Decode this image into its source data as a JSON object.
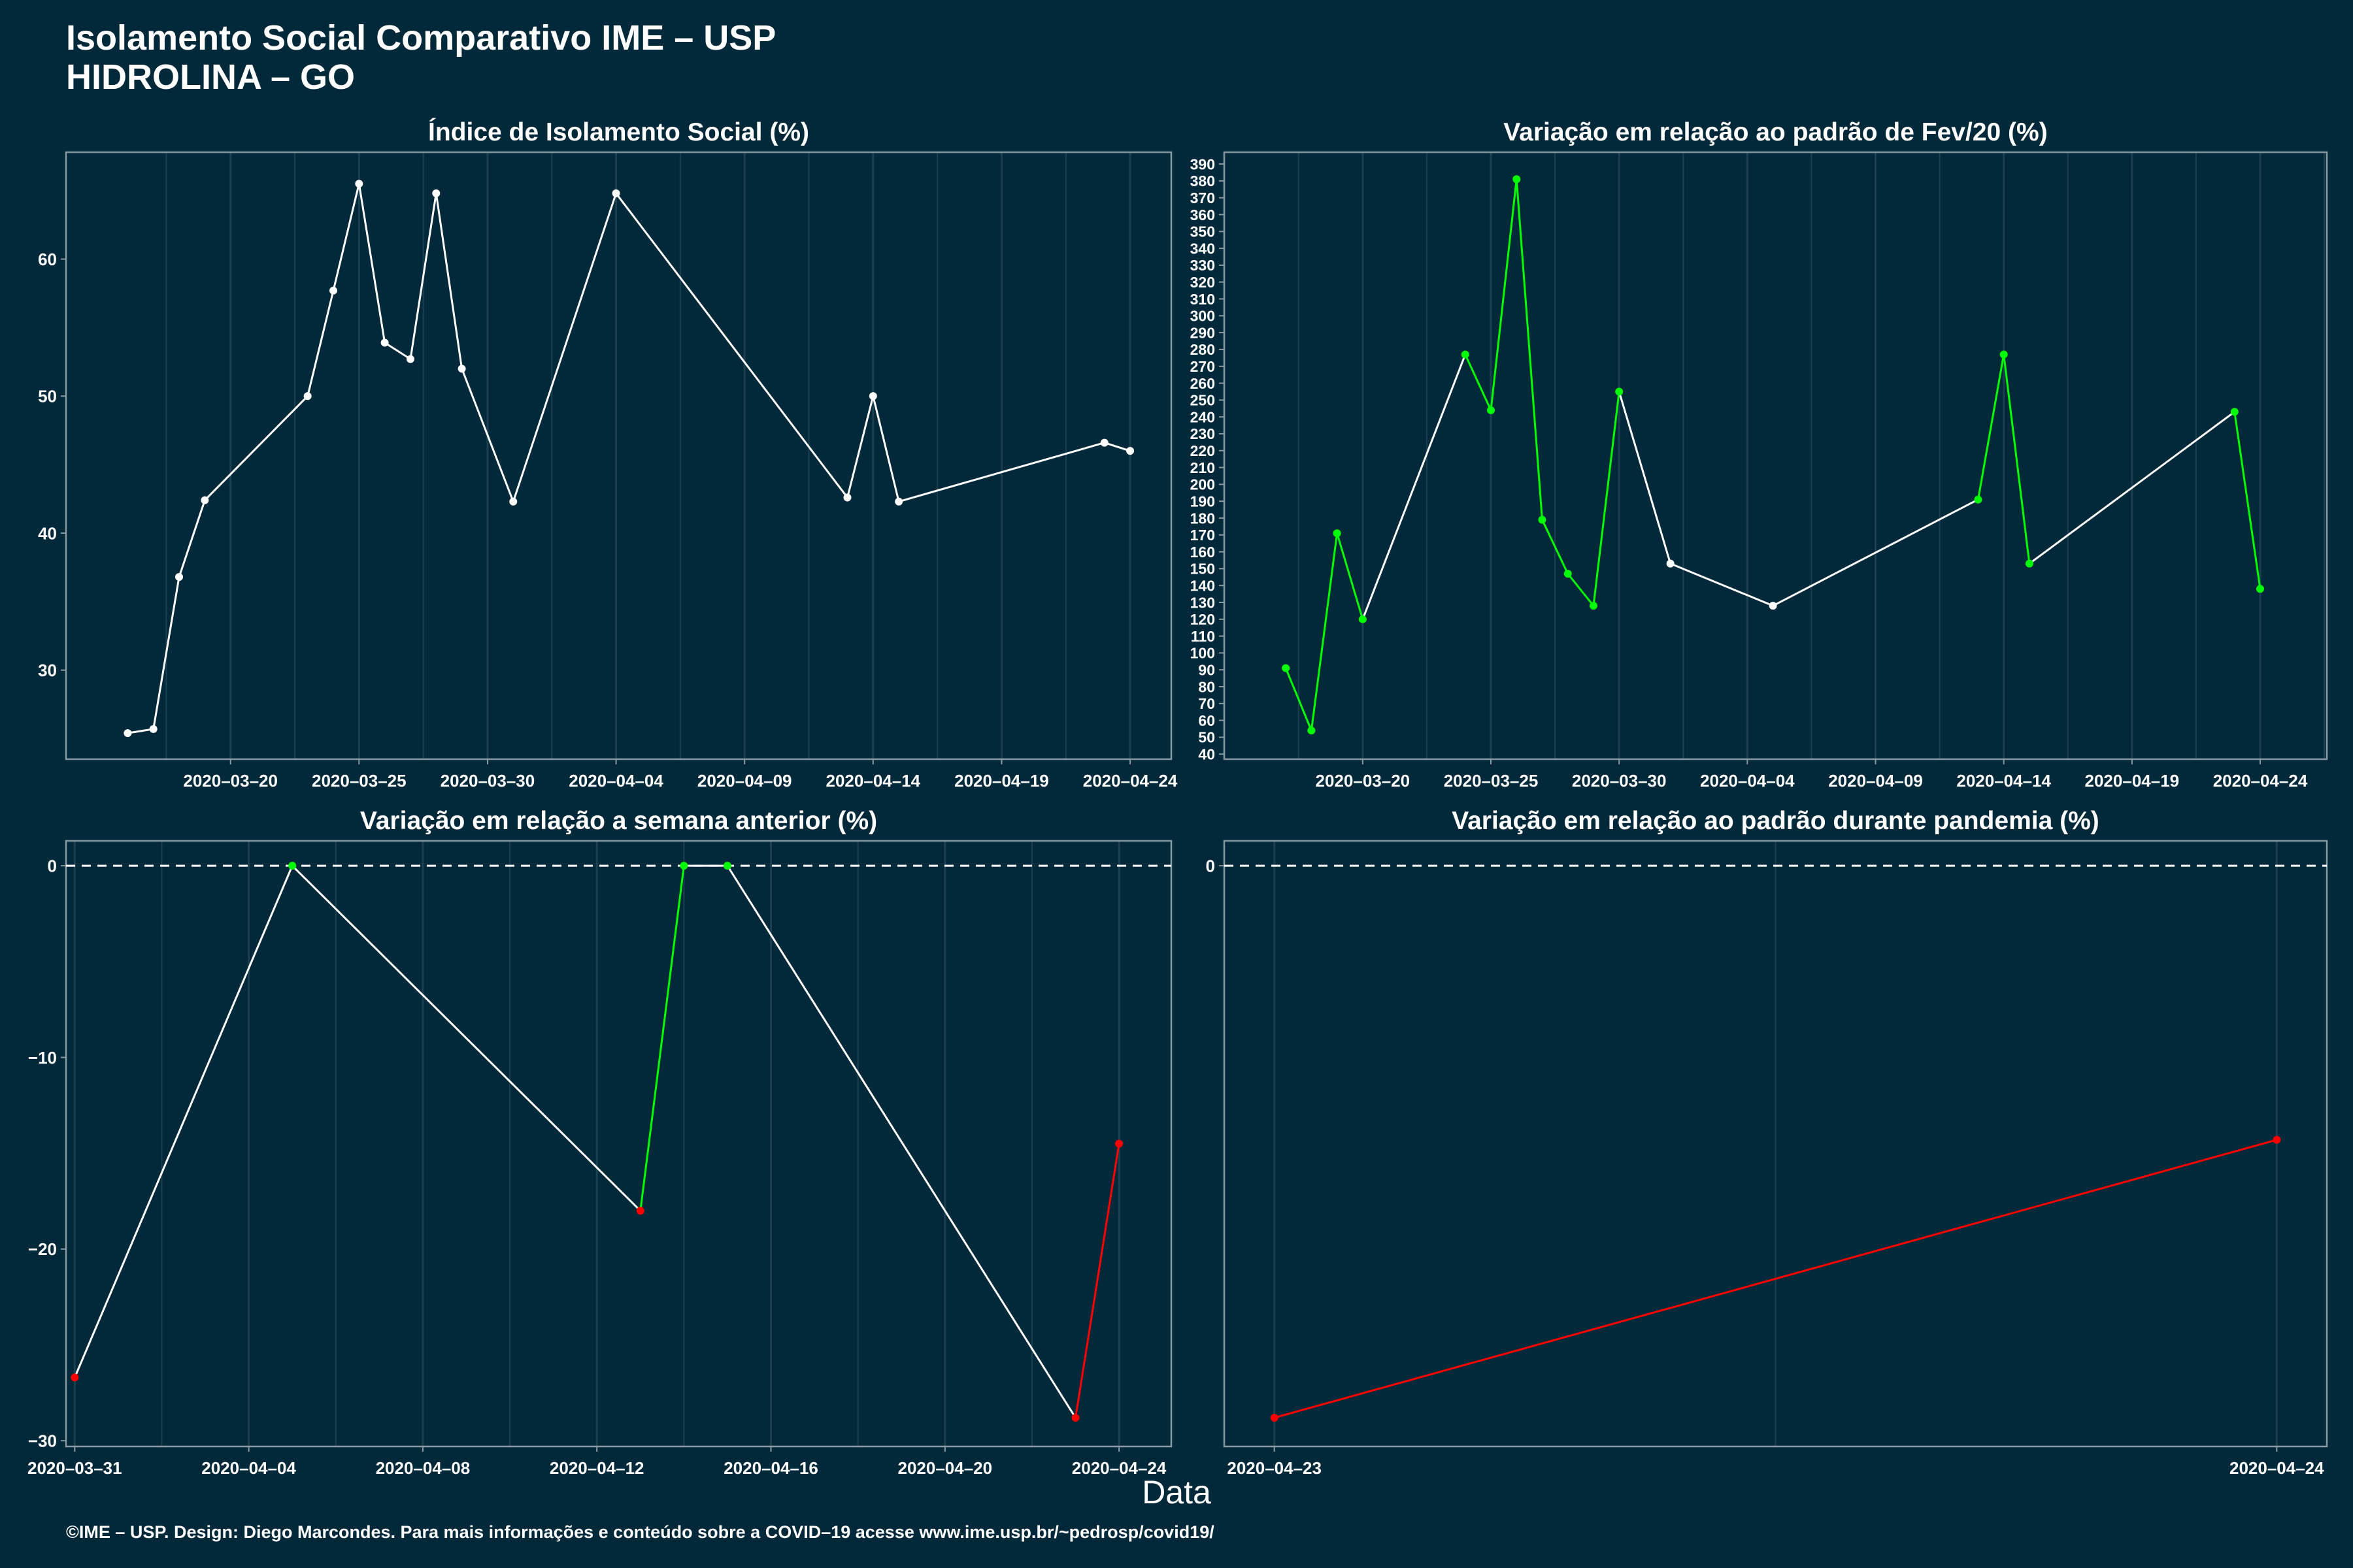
{
  "header": {
    "title_line1": "Isolamento Social Comparativo IME – USP",
    "title_line2": "HIDROLINA – GO"
  },
  "x_axis_title": "Data",
  "footer": "©IME – USP. Design: Diego Marcondes. Para mais informações e conteúdo sobre a COVID–19 acesse www.ime.usp.br/~pedrosp/covid19/",
  "colors": {
    "background": "#02293a",
    "line_white": "#ffffff",
    "increase_green": "#00ff00",
    "decrease_red": "#ff0000",
    "grid": "#1c4050",
    "frame": "#8a9aa2"
  },
  "chart_data": [
    {
      "type": "line",
      "title": "Índice de Isolamento Social (%)",
      "xlabel": "",
      "ylabel": "",
      "x": [
        "2020-03-16",
        "2020-03-17",
        "2020-03-18",
        "2020-03-19",
        "2020-03-23",
        "2020-03-24",
        "2020-03-25",
        "2020-03-26",
        "2020-03-27",
        "2020-03-28",
        "2020-03-29",
        "2020-03-31",
        "2020-04-04",
        "2020-04-13",
        "2020-04-14",
        "2020-04-15",
        "2020-04-23",
        "2020-04-24"
      ],
      "values": [
        25.4,
        25.7,
        36.8,
        42.4,
        50.0,
        57.7,
        65.5,
        53.9,
        52.7,
        64.8,
        52.0,
        42.3,
        64.8,
        42.6,
        50.0,
        42.3,
        46.6,
        46.0
      ],
      "ylim": [
        23.5,
        67.8
      ],
      "yticks": [
        "30",
        "40",
        "50",
        "60"
      ],
      "xticks": [
        "2020–03–20",
        "2020–03–25",
        "2020–03–30",
        "2020–04–04",
        "2020–04–09",
        "2020–04–14",
        "2020–04–19",
        "2020–04–24"
      ],
      "xrange": [
        "2020-03-13.6",
        "2020-04-25.6"
      ]
    },
    {
      "type": "line",
      "title": "Variação em relação ao padrão de Fev/20 (%)",
      "xlabel": "",
      "ylabel": "",
      "x": [
        "2020-03-17",
        "2020-03-18",
        "2020-03-19",
        "2020-03-20",
        "2020-03-24",
        "2020-03-25",
        "2020-03-26",
        "2020-03-27",
        "2020-03-28",
        "2020-03-29",
        "2020-03-30",
        "2020-04-01",
        "2020-04-05",
        "2020-04-13",
        "2020-04-14",
        "2020-04-15",
        "2020-04-23",
        "2020-04-24"
      ],
      "values": [
        91,
        54,
        171,
        120,
        277,
        244,
        381,
        179,
        147,
        128,
        255,
        153,
        128,
        191,
        277,
        153,
        243,
        138
      ],
      "segment_colors": [
        "green",
        "green",
        "green",
        "white",
        "green",
        "green",
        "green",
        "green",
        "green",
        "green",
        "white",
        "white",
        "white",
        "green",
        "green",
        "white",
        "green"
      ],
      "ylim": [
        37,
        397
      ],
      "yticks": [
        "40",
        "50",
        "60",
        "70",
        "80",
        "90",
        "100",
        "110",
        "120",
        "130",
        "140",
        "150",
        "160",
        "170",
        "180",
        "190",
        "200",
        "210",
        "220",
        "230",
        "240",
        "250",
        "260",
        "270",
        "280",
        "290",
        "300",
        "310",
        "320",
        "330",
        "340",
        "350",
        "360",
        "370",
        "380",
        "390"
      ],
      "xticks": [
        "2020–03–20",
        "2020–03–25",
        "2020–03–30",
        "2020–04–04",
        "2020–04–09",
        "2020–04–14",
        "2020–04–19",
        "2020–04–24"
      ],
      "xrange": [
        "2020-03-14.6",
        "2020-04-26.6"
      ]
    },
    {
      "type": "line",
      "title": "Variação em relação a semana anterior (%)",
      "xlabel": "",
      "ylabel": "",
      "x": [
        "2020-03-31",
        "2020-04-05",
        "2020-04-13",
        "2020-04-14",
        "2020-04-15",
        "2020-04-23",
        "2020-04-24"
      ],
      "values": [
        -26.7,
        0,
        -18,
        0,
        0,
        -28.8,
        -14.5
      ],
      "point_colors": [
        "red",
        "green",
        "red",
        "green",
        "green",
        "red",
        "red"
      ],
      "segment_colors": [
        "white",
        "white",
        "green",
        "white",
        "white",
        "red"
      ],
      "reference_line": 0,
      "ylim": [
        -30.3,
        1.3
      ],
      "yticks": [
        "0",
        "−10",
        "−20",
        "−30"
      ],
      "xticks": [
        "2020–03–31",
        "2020–04–04",
        "2020–04–08",
        "2020–04–12",
        "2020–04–16",
        "2020–04–20",
        "2020–04–24"
      ],
      "xrange": [
        "2020-03-30.8",
        "2020-04-25.2"
      ]
    },
    {
      "type": "line",
      "title": "Variação em relação ao padrão durante pandemia (%)",
      "xlabel": "",
      "ylabel": "",
      "x": [
        "2020-04-23",
        "2020-04-24"
      ],
      "values": [
        -28.8,
        -14.3
      ],
      "point_colors": [
        "red",
        "red"
      ],
      "segment_colors": [
        "red"
      ],
      "reference_line": 0,
      "ylim": [
        -30.3,
        1.3
      ],
      "yticks": [
        "0"
      ],
      "xticks": [
        "2020–04–23",
        "2020–04–24"
      ],
      "xrange": [
        "2020-04-22.95",
        "2020-04-24.05"
      ]
    }
  ]
}
